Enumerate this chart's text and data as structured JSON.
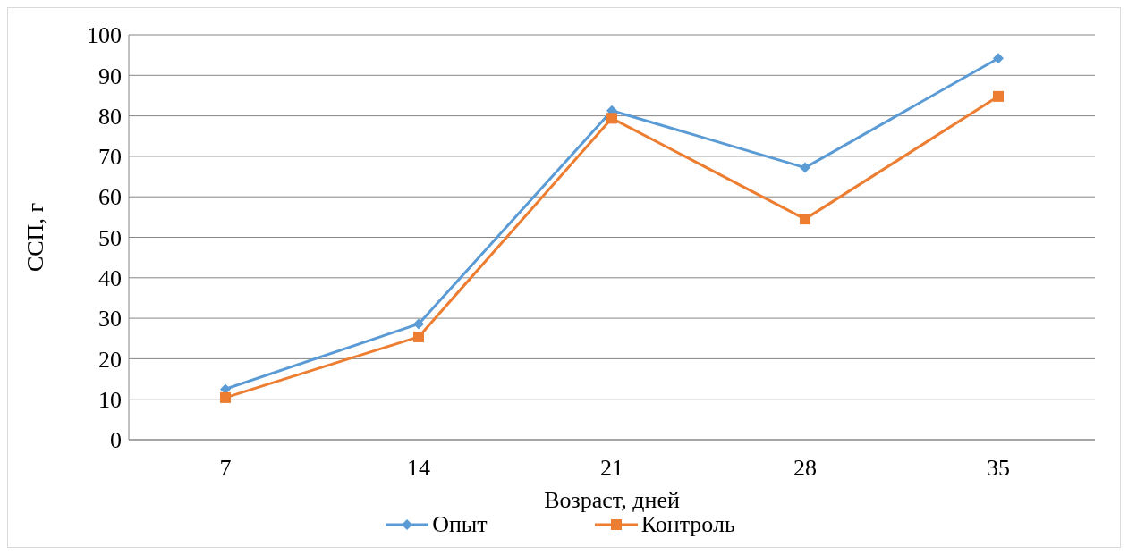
{
  "chart_data": {
    "type": "line",
    "xlabel": "Возраст, дней",
    "ylabel": "ССП, г",
    "categories": [
      "7",
      "14",
      "21",
      "28",
      "35"
    ],
    "series": [
      {
        "name": "Опыт",
        "color": "#5b9bd5",
        "marker": "diamond",
        "values": [
          12.5,
          28.6,
          81.3,
          67.2,
          94.2
        ]
      },
      {
        "name": "Контроль",
        "color": "#ed7d31",
        "marker": "square",
        "values": [
          10.4,
          25.4,
          79.4,
          54.5,
          84.8
        ]
      }
    ],
    "ylim": [
      0,
      100
    ],
    "yticks": [
      0,
      10,
      20,
      30,
      40,
      50,
      60,
      70,
      80,
      90,
      100
    ],
    "grid": "y",
    "legend": "bottom",
    "line_style": "solid"
  }
}
